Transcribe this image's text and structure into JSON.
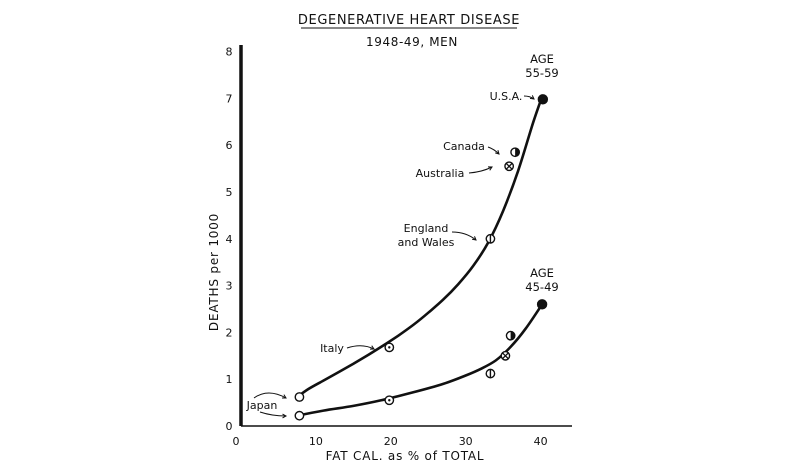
{
  "chart_data": {
    "type": "line",
    "title": "DEGENERATIVE HEART DISEASE",
    "subtitle": "1948-49, MEN",
    "xlabel": "FAT CAL. as % of TOTAL",
    "ylabel": "DEATHS per 1000",
    "xlim": [
      0,
      45
    ],
    "ylim": [
      0,
      8
    ],
    "x_ticks": [
      "0",
      "10",
      "20",
      "30",
      "40"
    ],
    "y_ticks": [
      "0",
      "1",
      "2",
      "3",
      "4",
      "5",
      "6",
      "7",
      "8"
    ],
    "grid": false,
    "series": [
      {
        "name": "AGE 55-59",
        "label_lines": [
          "AGE",
          "55-59"
        ],
        "curve_x": [
          7.5,
          9,
          11,
          13,
          15,
          17,
          19,
          21,
          23,
          25,
          27,
          29,
          31,
          33,
          35,
          37,
          39,
          40.3
        ],
        "curve_y": [
          0.62,
          0.79,
          0.97,
          1.15,
          1.33,
          1.52,
          1.72,
          1.93,
          2.16,
          2.42,
          2.7,
          3.03,
          3.42,
          3.92,
          4.6,
          5.45,
          6.48,
          7.08
        ],
        "points": [
          {
            "country": "Japan",
            "x": 7.8,
            "y": 0.62,
            "marker": "open-circle"
          },
          {
            "country": "Italy",
            "x": 19.8,
            "y": 1.68,
            "marker": "dot-circle"
          },
          {
            "country": "England and Wales",
            "x": 33.3,
            "y": 4.0,
            "marker": "bar-circle"
          },
          {
            "country": "Australia",
            "x": 35.8,
            "y": 5.55,
            "marker": "cross-circle"
          },
          {
            "country": "Canada",
            "x": 36.6,
            "y": 5.85,
            "marker": "half-circle"
          },
          {
            "country": "U.S.A.",
            "x": 40.3,
            "y": 6.98,
            "marker": "filled-circle"
          }
        ]
      },
      {
        "name": "AGE 45-49",
        "label_lines": [
          "AGE",
          "45-49"
        ],
        "curve_x": [
          7.5,
          11,
          15,
          19,
          23,
          27,
          30,
          32,
          34,
          36,
          38,
          40.2
        ],
        "curve_y": [
          0.22,
          0.33,
          0.43,
          0.56,
          0.72,
          0.9,
          1.08,
          1.22,
          1.4,
          1.69,
          2.08,
          2.6
        ],
        "points": [
          {
            "country": "Japan",
            "x": 7.8,
            "y": 0.22,
            "marker": "open-circle"
          },
          {
            "country": "Italy",
            "x": 19.8,
            "y": 0.55,
            "marker": "dot-circle"
          },
          {
            "country": "England and Wales",
            "x": 33.3,
            "y": 1.12,
            "marker": "bar-circle"
          },
          {
            "country": "Australia",
            "x": 35.3,
            "y": 1.5,
            "marker": "cross-circle"
          },
          {
            "country": "Canada",
            "x": 36.0,
            "y": 1.93,
            "marker": "half-circle"
          },
          {
            "country": "U.S.A.",
            "x": 40.2,
            "y": 2.6,
            "marker": "filled-circle"
          }
        ]
      }
    ],
    "annotations": [
      {
        "text": "Japan",
        "lines": [
          "Japan"
        ]
      },
      {
        "text": "Italy",
        "lines": [
          "Italy"
        ]
      },
      {
        "text": "England and Wales",
        "lines": [
          "England",
          "and Wales"
        ]
      },
      {
        "text": "Australia",
        "lines": [
          "Australia"
        ]
      },
      {
        "text": "Canada",
        "lines": [
          "Canada"
        ]
      },
      {
        "text": "U.S.A.",
        "lines": [
          "U.S.A."
        ]
      }
    ]
  }
}
